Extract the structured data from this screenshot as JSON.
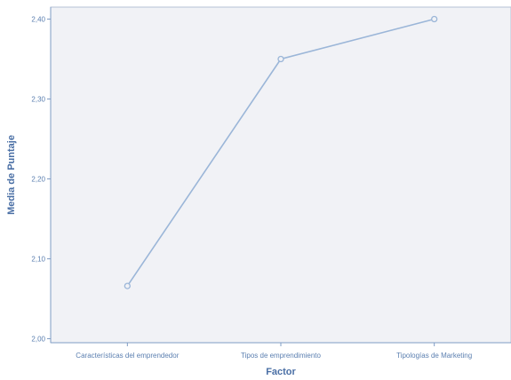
{
  "colors": {
    "plot_background": "#f1f2f6",
    "plot_border": "#b5c2d6",
    "axis": "#7f9cc4",
    "series": "#9bb6d8",
    "text": "#5b7fb0"
  },
  "chart_data": {
    "type": "line",
    "categories": [
      "Características del emprendedor",
      "Tipos de emprendimiento",
      "Tipologías de Marketing"
    ],
    "series": [
      {
        "values": [
          2.066,
          2.35,
          2.4
        ]
      }
    ],
    "xlabel": "Factor",
    "ylabel": "Media de Puntaje",
    "ylim": [
      1.995,
      2.415
    ],
    "yticks": [
      2.0,
      2.1,
      2.2,
      2.3,
      2.4
    ],
    "ytick_labels": [
      "2,00",
      "2,10",
      "2,20",
      "2,30",
      "2,40"
    ],
    "grid": false,
    "marker": "circle"
  }
}
